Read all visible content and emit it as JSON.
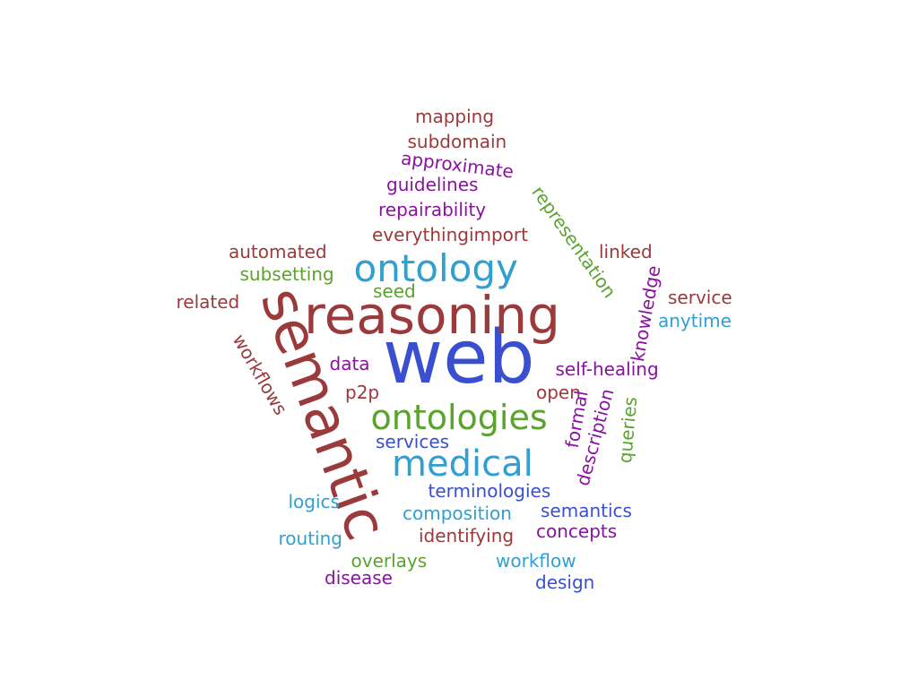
{
  "colors": {
    "blue": "#3a4fd0",
    "cyan": "#2fa0d0",
    "red": "#9a3a3a",
    "green": "#5aa32c",
    "purple": "#8a12a0"
  },
  "words": [
    {
      "key": "web",
      "text": "web",
      "color": "#3a4fd0"
    },
    {
      "key": "reasoning",
      "text": "reasoning",
      "color": "#9a3a3a"
    },
    {
      "key": "semantic",
      "text": "semantic",
      "color": "#9a3a3a"
    },
    {
      "key": "ontology",
      "text": "ontology",
      "color": "#2fa0d0"
    },
    {
      "key": "ontologies",
      "text": "ontologies",
      "color": "#5aa32c"
    },
    {
      "key": "medical",
      "text": "medical",
      "color": "#2fa0d0"
    },
    {
      "key": "mapping",
      "text": "mapping",
      "color": "#9a3a3a"
    },
    {
      "key": "subdomain",
      "text": "subdomain",
      "color": "#9a3a3a"
    },
    {
      "key": "approximate",
      "text": "approximate",
      "color": "#8a12a0"
    },
    {
      "key": "guidelines",
      "text": "guidelines",
      "color": "#8a12a0"
    },
    {
      "key": "repairability",
      "text": "repairability",
      "color": "#8a12a0"
    },
    {
      "key": "everythingimport",
      "text": "everythingimport",
      "color": "#9a3a3a"
    },
    {
      "key": "representation",
      "text": "representation",
      "color": "#5aa32c"
    },
    {
      "key": "automated",
      "text": "automated",
      "color": "#9a3a3a"
    },
    {
      "key": "subsetting",
      "text": "subsetting",
      "color": "#5aa32c"
    },
    {
      "key": "related",
      "text": "related",
      "color": "#9a3a3a"
    },
    {
      "key": "seed",
      "text": "seed",
      "color": "#5aa32c"
    },
    {
      "key": "linked",
      "text": "linked",
      "color": "#9a3a3a"
    },
    {
      "key": "knowledge",
      "text": "knowledge",
      "color": "#8a12a0"
    },
    {
      "key": "service",
      "text": "service",
      "color": "#9a3a3a"
    },
    {
      "key": "anytime",
      "text": "anytime",
      "color": "#2fa0d0"
    },
    {
      "key": "workflows",
      "text": "workflows",
      "color": "#9a3a3a"
    },
    {
      "key": "data",
      "text": "data",
      "color": "#8a12a0"
    },
    {
      "key": "self-healing",
      "text": "self-healing",
      "color": "#8a12a0"
    },
    {
      "key": "p2p",
      "text": "p2p",
      "color": "#9a3a3a"
    },
    {
      "key": "open",
      "text": "open",
      "color": "#9a3a3a"
    },
    {
      "key": "formal",
      "text": "formal",
      "color": "#8a12a0"
    },
    {
      "key": "description",
      "text": "description",
      "color": "#8a12a0"
    },
    {
      "key": "queries",
      "text": "queries",
      "color": "#5aa32c"
    },
    {
      "key": "services",
      "text": "services",
      "color": "#3a4fd0"
    },
    {
      "key": "terminologies",
      "text": "terminologies",
      "color": "#3a4fd0"
    },
    {
      "key": "logics",
      "text": "logics",
      "color": "#2fa0d0"
    },
    {
      "key": "composition",
      "text": "composition",
      "color": "#2fa0d0"
    },
    {
      "key": "semantics",
      "text": "semantics",
      "color": "#3a4fd0"
    },
    {
      "key": "routing",
      "text": "routing",
      "color": "#2fa0d0"
    },
    {
      "key": "identifying",
      "text": "identifying",
      "color": "#9a3a3a"
    },
    {
      "key": "concepts",
      "text": "concepts",
      "color": "#8a12a0"
    },
    {
      "key": "overlays",
      "text": "overlays",
      "color": "#5aa32c"
    },
    {
      "key": "workflow",
      "text": "workflow",
      "color": "#2fa0d0"
    },
    {
      "key": "disease",
      "text": "disease",
      "color": "#8a12a0"
    },
    {
      "key": "design",
      "text": "design",
      "color": "#3a4fd0"
    }
  ]
}
